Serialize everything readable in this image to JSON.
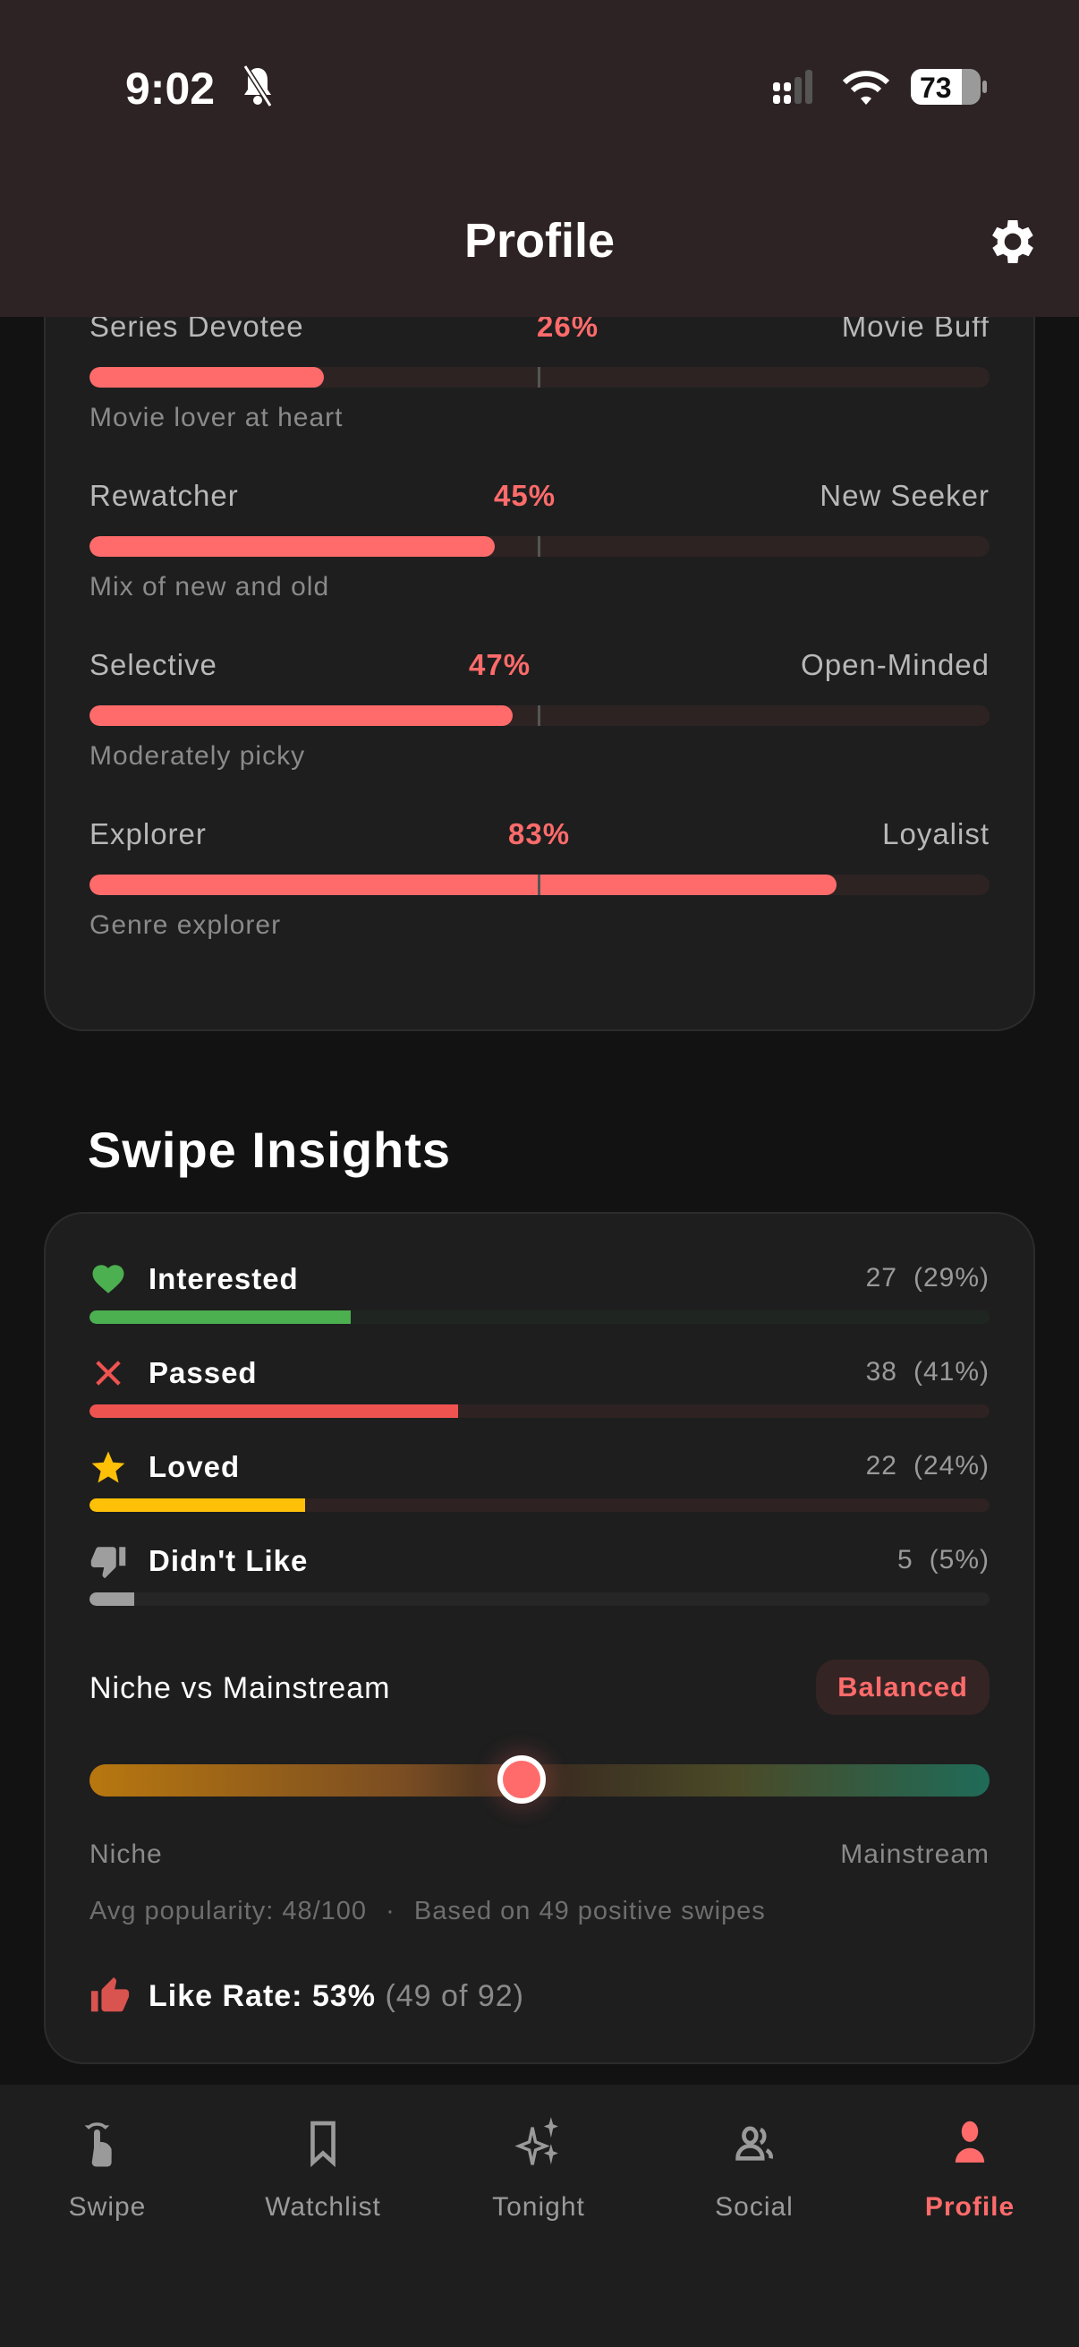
{
  "status_bar": {
    "time": "9:02",
    "battery": "73"
  },
  "header": {
    "title": "Profile"
  },
  "traits": [
    {
      "left": "Series Devotee",
      "percent": "26%",
      "value": 26,
      "right": "Movie Buff",
      "description": "Movie lover at heart"
    },
    {
      "left": "Rewatcher",
      "percent": "45%",
      "value": 45,
      "right": "New Seeker",
      "description": "Mix of new and old"
    },
    {
      "left": "Selective",
      "percent": "47%",
      "value": 47,
      "right": "Open-Minded",
      "description": "Moderately picky"
    },
    {
      "left": "Explorer",
      "percent": "83%",
      "value": 83,
      "right": "Loyalist",
      "description": "Genre explorer"
    }
  ],
  "swipe_insights": {
    "title": "Swipe Insights",
    "rows": [
      {
        "label": "Interested",
        "count": "27",
        "percent": "(29%)",
        "value": 29,
        "icon": "heart-icon",
        "color": "#4caf50",
        "track": "#1f2520"
      },
      {
        "label": "Passed",
        "count": "38",
        "percent": "(41%)",
        "value": 41,
        "icon": "x-icon",
        "color": "#ef5350",
        "track": "#2e2222"
      },
      {
        "label": "Loved",
        "count": "22",
        "percent": "(24%)",
        "value": 24,
        "icon": "star-icon",
        "color": "#ffc107",
        "track": "#2e2222"
      },
      {
        "label": "Didn't Like",
        "count": "5",
        "percent": "(5%)",
        "value": 5,
        "icon": "thumbs-down-icon",
        "color": "#9e9e9e",
        "track": "#262626"
      }
    ],
    "niche": {
      "title": "Niche vs Mainstream",
      "badge": "Balanced",
      "value": 48,
      "left_label": "Niche",
      "right_label": "Mainstream",
      "avg": "Avg popularity: 48/100",
      "sep": "·",
      "based_on": "Based on 49 positive swipes"
    },
    "like_rate": {
      "label": "Like Rate: 53%",
      "detail": "(49 of 92)"
    }
  },
  "nav": [
    {
      "label": "Swipe",
      "icon": "swipe-gesture-icon",
      "active": false
    },
    {
      "label": "Watchlist",
      "icon": "bookmark-icon",
      "active": false
    },
    {
      "label": "Tonight",
      "icon": "sparkles-icon",
      "active": false
    },
    {
      "label": "Social",
      "icon": "people-icon",
      "active": false
    },
    {
      "label": "Profile",
      "icon": "person-icon",
      "active": true
    }
  ],
  "colors": {
    "accent": "#ff6b6b",
    "header_bg": "#2e2324",
    "card_bg": "#1e1e1e"
  }
}
